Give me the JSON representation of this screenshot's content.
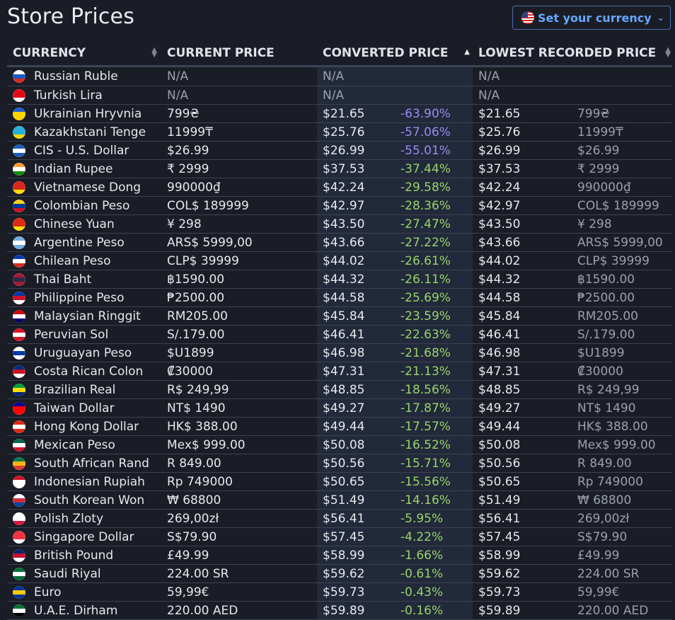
{
  "title": "Store Prices",
  "currency_button": {
    "label": "Set your currency",
    "icon": "us-flag-icon",
    "chevron": "chevron-down-icon"
  },
  "columns": {
    "currency": "CURRENCY",
    "current_price": "CURRENT PRICE",
    "converted_price": "CONVERTED PRICE",
    "lowest_recorded_price": "LOWEST RECORDED PRICE",
    "sort_active": "converted_price_ascending"
  },
  "colors": {
    "strong_discount": "#9b8cf2",
    "discount": "#97d46b",
    "link": "#66a8ff"
  },
  "rows": [
    {
      "currency": "Russian Ruble",
      "flag": [
        "#fff",
        "#1c57c4",
        "#d52b1e"
      ],
      "current": "N/A",
      "converted": "N/A",
      "diff": "",
      "lowest": "N/A",
      "lowest_orig": ""
    },
    {
      "currency": "Turkish Lira",
      "flag": [
        "#e30a17",
        "#e30a17",
        "#fff"
      ],
      "current": "N/A",
      "converted": "N/A",
      "diff": "",
      "lowest": "N/A",
      "lowest_orig": ""
    },
    {
      "currency": "Ukrainian Hryvnia",
      "flag": [
        "#1f5bd0",
        "#ffd500",
        "#ffd500"
      ],
      "current": "799₴",
      "converted": "$21.65",
      "diff": "-63.90%",
      "lowest": "$21.65",
      "lowest_orig": "799₴"
    },
    {
      "currency": "Kazakhstani Tenge",
      "flag": [
        "#27b0d6",
        "#27b0d6",
        "#f5d400"
      ],
      "current": "11999₸",
      "converted": "$25.76",
      "diff": "-57.06%",
      "lowest": "$25.76",
      "lowest_orig": "11999₸"
    },
    {
      "currency": "CIS - U.S. Dollar",
      "flag": [
        "#1e5bb8",
        "#fff",
        "#1e5bb8"
      ],
      "current": "$26.99",
      "converted": "$26.99",
      "diff": "-55.01%",
      "lowest": "$26.99",
      "lowest_orig": "$26.99"
    },
    {
      "currency": "Indian Rupee",
      "flag": [
        "#ff9933",
        "#fff",
        "#138808"
      ],
      "current": "₹ 2999",
      "converted": "$37.53",
      "diff": "-37.44%",
      "lowest": "$37.53",
      "lowest_orig": "₹ 2999"
    },
    {
      "currency": "Vietnamese Dong",
      "flag": [
        "#da251d",
        "#da251d",
        "#ffdd00"
      ],
      "current": "990000₫",
      "converted": "$42.24",
      "diff": "-29.58%",
      "lowest": "$42.24",
      "lowest_orig": "990000₫"
    },
    {
      "currency": "Colombian Peso",
      "flag": [
        "#fcd116",
        "#003893",
        "#ce1126"
      ],
      "current": "COL$ 189999",
      "converted": "$42.97",
      "diff": "-28.36%",
      "lowest": "$42.97",
      "lowest_orig": "COL$ 189999"
    },
    {
      "currency": "Chinese Yuan",
      "flag": [
        "#de2910",
        "#de2910",
        "#ffde00"
      ],
      "current": "¥ 298",
      "converted": "$43.50",
      "diff": "-27.47%",
      "lowest": "$43.50",
      "lowest_orig": "¥ 298"
    },
    {
      "currency": "Argentine Peso",
      "flag": [
        "#74acdf",
        "#fff",
        "#74acdf"
      ],
      "current": "ARS$ 5999,00",
      "converted": "$43.66",
      "diff": "-27.22%",
      "lowest": "$43.66",
      "lowest_orig": "ARS$ 5999,00"
    },
    {
      "currency": "Chilean Peso",
      "flag": [
        "#0039a6",
        "#fff",
        "#d52b1e"
      ],
      "current": "CLP$ 39999",
      "converted": "$44.02",
      "diff": "-26.61%",
      "lowest": "$44.02",
      "lowest_orig": "CLP$ 39999"
    },
    {
      "currency": "Thai Baht",
      "flag": [
        "#a51931",
        "#2d2a4a",
        "#a51931"
      ],
      "current": "฿1590.00",
      "converted": "$44.32",
      "diff": "-26.11%",
      "lowest": "$44.32",
      "lowest_orig": "฿1590.00"
    },
    {
      "currency": "Philippine Peso",
      "flag": [
        "#0038a8",
        "#ce1126",
        "#fff"
      ],
      "current": "₱2500.00",
      "converted": "$44.58",
      "diff": "-25.69%",
      "lowest": "$44.58",
      "lowest_orig": "₱2500.00"
    },
    {
      "currency": "Malaysian Ringgit",
      "flag": [
        "#cc0001",
        "#fff",
        "#010066"
      ],
      "current": "RM205.00",
      "converted": "$45.84",
      "diff": "-23.59%",
      "lowest": "$45.84",
      "lowest_orig": "RM205.00"
    },
    {
      "currency": "Peruvian Sol",
      "flag": [
        "#d91023",
        "#fff",
        "#d91023"
      ],
      "current": "S/.179.00",
      "converted": "$46.41",
      "diff": "-22.63%",
      "lowest": "$46.41",
      "lowest_orig": "S/.179.00"
    },
    {
      "currency": "Uruguayan Peso",
      "flag": [
        "#fff",
        "#0038a8",
        "#fff"
      ],
      "current": "$U1899",
      "converted": "$46.98",
      "diff": "-21.68%",
      "lowest": "$46.98",
      "lowest_orig": "$U1899"
    },
    {
      "currency": "Costa Rican Colon",
      "flag": [
        "#002b7f",
        "#ce1126",
        "#fff"
      ],
      "current": "₡30000",
      "converted": "$47.31",
      "diff": "-21.13%",
      "lowest": "$47.31",
      "lowest_orig": "₡30000"
    },
    {
      "currency": "Brazilian Real",
      "flag": [
        "#009c3b",
        "#ffdf00",
        "#002776"
      ],
      "current": "R$ 249,99",
      "converted": "$48.85",
      "diff": "-18.56%",
      "lowest": "$48.85",
      "lowest_orig": "R$ 249,99"
    },
    {
      "currency": "Taiwan Dollar",
      "flag": [
        "#000095",
        "#fe0000",
        "#fe0000"
      ],
      "current": "NT$ 1490",
      "converted": "$49.27",
      "diff": "-17.87%",
      "lowest": "$49.27",
      "lowest_orig": "NT$ 1490"
    },
    {
      "currency": "Hong Kong Dollar",
      "flag": [
        "#de2910",
        "#fff",
        "#de2910"
      ],
      "current": "HK$ 388.00",
      "converted": "$49.44",
      "diff": "-17.57%",
      "lowest": "$49.44",
      "lowest_orig": "HK$ 388.00"
    },
    {
      "currency": "Mexican Peso",
      "flag": [
        "#006847",
        "#fff",
        "#ce1126"
      ],
      "current": "Mex$ 999.00",
      "converted": "$50.08",
      "diff": "-16.52%",
      "lowest": "$50.08",
      "lowest_orig": "Mex$ 999.00"
    },
    {
      "currency": "South African Rand",
      "flag": [
        "#007a4d",
        "#ffb612",
        "#de3831"
      ],
      "current": "R 849.00",
      "converted": "$50.56",
      "diff": "-15.71%",
      "lowest": "$50.56",
      "lowest_orig": "R 849.00"
    },
    {
      "currency": "Indonesian Rupiah",
      "flag": [
        "#ce1126",
        "#fff",
        "#fff"
      ],
      "current": "Rp 749000",
      "converted": "$50.65",
      "diff": "-15.56%",
      "lowest": "$50.65",
      "lowest_orig": "Rp 749000"
    },
    {
      "currency": "South Korean Won",
      "flag": [
        "#fff",
        "#cd2e3a",
        "#0047a0"
      ],
      "current": "₩ 68800",
      "converted": "$51.49",
      "diff": "-14.16%",
      "lowest": "$51.49",
      "lowest_orig": "₩ 68800"
    },
    {
      "currency": "Polish Zloty",
      "flag": [
        "#fff",
        "#fff",
        "#dc143c"
      ],
      "current": "269,00zł",
      "converted": "$56.41",
      "diff": "-5.95%",
      "lowest": "$56.41",
      "lowest_orig": "269,00zł"
    },
    {
      "currency": "Singapore Dollar",
      "flag": [
        "#ef3340",
        "#ef3340",
        "#fff"
      ],
      "current": "S$79.90",
      "converted": "$57.45",
      "diff": "-4.22%",
      "lowest": "$57.45",
      "lowest_orig": "S$79.90"
    },
    {
      "currency": "British Pound",
      "flag": [
        "#012169",
        "#c8102e",
        "#fff"
      ],
      "current": "£49.99",
      "converted": "$58.99",
      "diff": "-1.66%",
      "lowest": "$58.99",
      "lowest_orig": "£49.99"
    },
    {
      "currency": "Saudi Riyal",
      "flag": [
        "#006c35",
        "#fff",
        "#006c35"
      ],
      "current": "224.00 SR",
      "converted": "$59.62",
      "diff": "-0.61%",
      "lowest": "$59.62",
      "lowest_orig": "224.00 SR"
    },
    {
      "currency": "Euro",
      "flag": [
        "#003399",
        "#ffcc00",
        "#003399"
      ],
      "current": "59,99€",
      "converted": "$59.73",
      "diff": "-0.43%",
      "lowest": "$59.73",
      "lowest_orig": "59,99€"
    },
    {
      "currency": "U.A.E. Dirham",
      "flag": [
        "#00732f",
        "#fff",
        "#000"
      ],
      "current": "220.00 AED",
      "converted": "$59.89",
      "diff": "-0.16%",
      "lowest": "$59.89",
      "lowest_orig": "220.00 AED"
    }
  ]
}
